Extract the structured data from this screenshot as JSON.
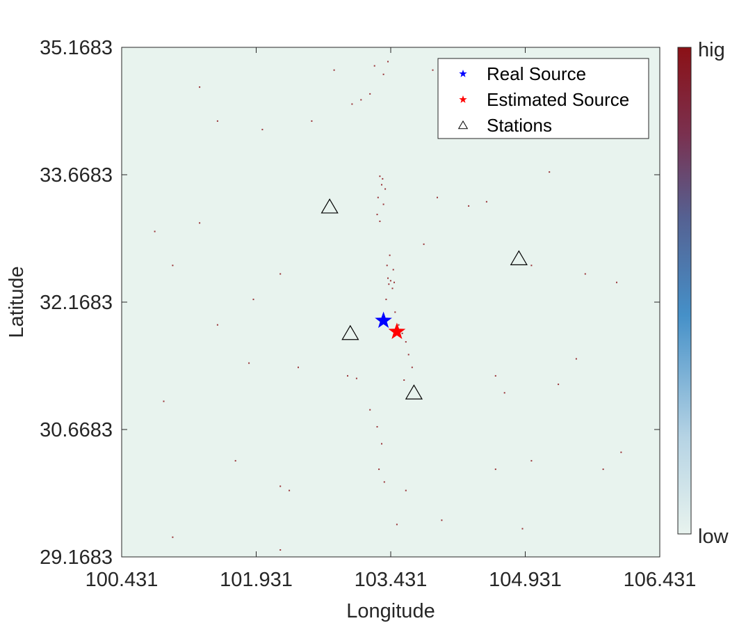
{
  "chart_data": {
    "type": "scatter",
    "title": "",
    "xlabel": "Longitude",
    "ylabel": "Latitude",
    "xlim": [
      100.431,
      106.431
    ],
    "ylim": [
      29.1683,
      35.1683
    ],
    "xticks": [
      100.431,
      101.931,
      103.431,
      104.931,
      106.431
    ],
    "xtick_labels": [
      "100.431",
      "101.931",
      "103.431",
      "104.931",
      "106.431"
    ],
    "yticks": [
      29.1683,
      30.6683,
      32.1683,
      33.6683,
      35.1683
    ],
    "ytick_labels": [
      "29.1683",
      "30.6683",
      "32.1683",
      "33.6683",
      "35.1683"
    ],
    "grid": false,
    "legend_position": "top-right",
    "series": [
      {
        "name": "Real Source",
        "marker": "star",
        "color": "#0000ff",
        "points": [
          [
            103.35,
            31.95
          ]
        ]
      },
      {
        "name": "Estimated Source",
        "marker": "star",
        "color": "#ff0000",
        "points": [
          [
            103.5,
            31.82
          ]
        ]
      },
      {
        "name": "Stations",
        "marker": "triangle",
        "color": "#000000",
        "points": [
          [
            102.75,
            33.29
          ],
          [
            104.86,
            32.68
          ],
          [
            102.98,
            31.8
          ],
          [
            103.69,
            31.1
          ]
        ]
      }
    ],
    "background_field": {
      "low_color": "#e8f3ee",
      "high_color": "#8b1116",
      "scatter": [
        [
          103.31,
          33.65
        ],
        [
          103.34,
          33.62
        ],
        [
          103.33,
          33.55
        ],
        [
          103.37,
          33.5
        ],
        [
          103.29,
          33.4
        ],
        [
          103.35,
          33.32
        ],
        [
          103.28,
          33.2
        ],
        [
          103.31,
          33.12
        ],
        [
          103.42,
          32.72
        ],
        [
          103.39,
          32.6
        ],
        [
          103.46,
          32.55
        ],
        [
          103.4,
          32.45
        ],
        [
          103.43,
          32.42
        ],
        [
          103.47,
          32.4
        ],
        [
          103.41,
          32.38
        ],
        [
          103.45,
          32.33
        ],
        [
          103.38,
          32.2
        ],
        [
          103.48,
          32.05
        ],
        [
          103.52,
          31.9
        ],
        [
          103.56,
          31.8
        ],
        [
          103.6,
          31.7
        ],
        [
          103.63,
          31.55
        ],
        [
          103.67,
          31.4
        ],
        [
          103.58,
          31.25
        ],
        [
          102.95,
          31.3
        ],
        [
          103.05,
          31.27
        ],
        [
          103.2,
          30.9
        ],
        [
          103.28,
          30.7
        ],
        [
          103.33,
          30.5
        ],
        [
          103.3,
          30.2
        ],
        [
          103.36,
          30.05
        ],
        [
          103.6,
          29.95
        ],
        [
          103.0,
          34.5
        ],
        [
          103.1,
          34.55
        ],
        [
          103.2,
          34.62
        ],
        [
          103.35,
          34.85
        ],
        [
          103.4,
          35.0
        ],
        [
          103.25,
          34.95
        ],
        [
          102.8,
          34.9
        ],
        [
          102.55,
          34.3
        ],
        [
          103.9,
          34.9
        ],
        [
          104.3,
          33.3
        ],
        [
          104.5,
          33.35
        ],
        [
          105.2,
          33.7
        ],
        [
          105.0,
          32.6
        ],
        [
          105.6,
          32.5
        ],
        [
          105.5,
          31.5
        ],
        [
          104.6,
          31.3
        ],
        [
          102.0,
          34.2
        ],
        [
          101.5,
          34.3
        ],
        [
          101.3,
          33.1
        ],
        [
          101.0,
          32.6
        ],
        [
          102.2,
          32.5
        ],
        [
          101.9,
          32.2
        ],
        [
          101.5,
          31.9
        ],
        [
          102.4,
          31.4
        ],
        [
          100.9,
          31.0
        ],
        [
          101.7,
          30.3
        ],
        [
          102.2,
          30.0
        ],
        [
          101.0,
          29.4
        ],
        [
          102.2,
          29.25
        ],
        [
          103.5,
          29.55
        ],
        [
          104.9,
          29.5
        ],
        [
          105.0,
          30.3
        ],
        [
          105.8,
          30.2
        ],
        [
          106.0,
          30.4
        ],
        [
          105.95,
          32.4
        ],
        [
          104.7,
          31.1
        ],
        [
          104.6,
          30.2
        ],
        [
          104.0,
          29.6
        ],
        [
          103.8,
          32.85
        ],
        [
          104.9,
          34.55
        ],
        [
          101.85,
          31.45
        ],
        [
          102.3,
          29.95
        ],
        [
          103.95,
          33.4
        ],
        [
          101.3,
          34.7
        ],
        [
          100.8,
          33.0
        ],
        [
          105.3,
          31.2
        ]
      ]
    },
    "colorbar": {
      "high_label": "hig",
      "low_label": "low"
    }
  }
}
